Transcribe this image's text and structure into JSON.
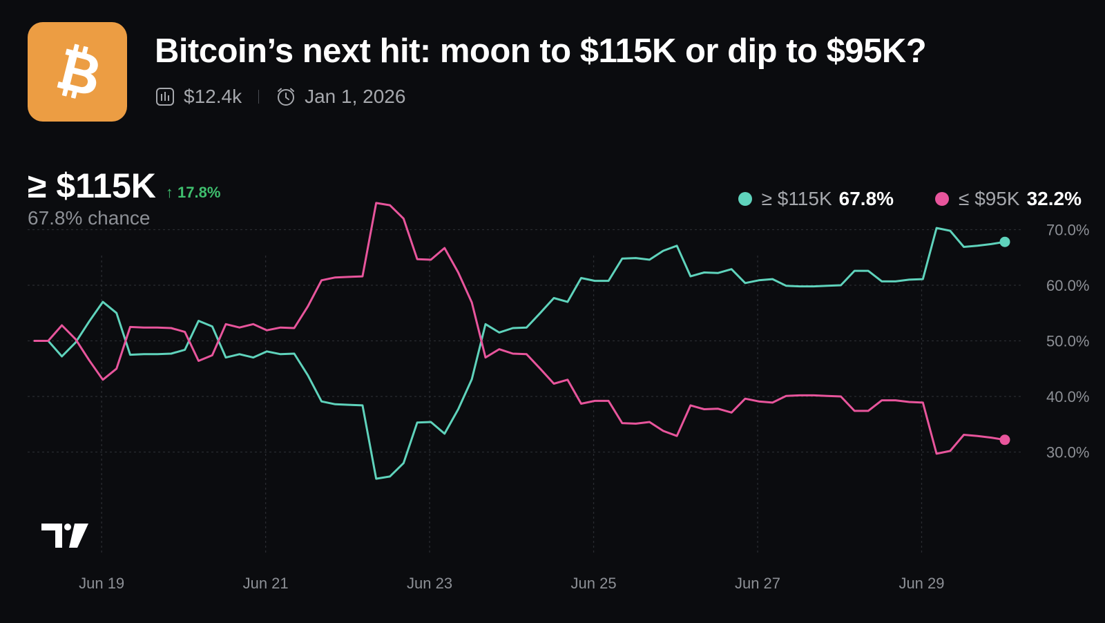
{
  "header": {
    "title": "Bitcoin’s next hit: moon to $115K or dip to $95K?",
    "volume": "$12.4k",
    "end_date": "Jan 1, 2026",
    "logo_bg": "#ec9d43"
  },
  "headline": {
    "label": "≥ $115K",
    "change": "↑ 17.8%",
    "chance": "67.8% chance"
  },
  "legend": [
    {
      "label": "≥ $115K",
      "value": "67.8%",
      "color": "#5fd3bc"
    },
    {
      "label": "≤ $95K",
      "value": "32.2%",
      "color": "#e8559c"
    }
  ],
  "chart_data": {
    "type": "line",
    "x": [
      0,
      0.5,
      1,
      1.5,
      2,
      2.5,
      3,
      3.5,
      4,
      4.5,
      5,
      5.5,
      6,
      6.5,
      7,
      7.5,
      8,
      8.5,
      9,
      9.5,
      10,
      10.5,
      11,
      11.5,
      12,
      12.5,
      13,
      13.5,
      14,
      14.5,
      15,
      15.5,
      16,
      16.5,
      17,
      17.5,
      18,
      18.5,
      19,
      19.5,
      20,
      20.5,
      21,
      21.5,
      22,
      22.5,
      23,
      23.5,
      24,
      24.5,
      25,
      25.5,
      26,
      26.5,
      27,
      27.5,
      28,
      28.5,
      29,
      29.5,
      30,
      30.5,
      31,
      31.5,
      32,
      32.5,
      33,
      33.5,
      34,
      34.5,
      35,
      35.5
    ],
    "x_tick_positions": [
      2,
      8,
      14,
      20,
      26,
      32
    ],
    "x_tick_labels": [
      "Jun 19",
      "Jun 21",
      "Jun 23",
      "Jun 25",
      "Jun 27",
      "Jun 29"
    ],
    "series": [
      {
        "name": "≥ $115K",
        "color": "#5fd3bc",
        "values": [
          50,
          50,
          47.2,
          49.7,
          53.5,
          57,
          55,
          47.5,
          47.6,
          47.6,
          47.7,
          48.4,
          53.6,
          52.6,
          47,
          47.6,
          47,
          48.1,
          47.6,
          47.7,
          43.8,
          39.1,
          38.6,
          38.5,
          38.4,
          25.2,
          25.6,
          28,
          35.3,
          35.4,
          33.3,
          37.7,
          43.1,
          53,
          51.5,
          52.3,
          52.4,
          55,
          57.7,
          57,
          61.3,
          60.8,
          60.8,
          64.8,
          64.9,
          64.6,
          66.2,
          67.1,
          61.6,
          62.3,
          62.2,
          62.9,
          60.4,
          60.9,
          61.1,
          59.9,
          59.8,
          59.8,
          59.9,
          60,
          62.6,
          62.6,
          60.7,
          60.7,
          61,
          61.1,
          70.3,
          69.8,
          66.9,
          67.1,
          67.4,
          67.8
        ]
      },
      {
        "name": "≤ $95K",
        "color": "#e8559c",
        "values": [
          50,
          50,
          52.8,
          50.3,
          46.5,
          43,
          45,
          52.5,
          52.4,
          52.4,
          52.3,
          51.6,
          46.4,
          47.4,
          53,
          52.4,
          53,
          51.9,
          52.4,
          52.3,
          56.2,
          60.9,
          61.4,
          61.5,
          61.6,
          74.8,
          74.4,
          72,
          64.7,
          64.6,
          66.7,
          62.3,
          56.9,
          47,
          48.5,
          47.7,
          47.6,
          45,
          42.3,
          43,
          38.7,
          39.2,
          39.2,
          35.2,
          35.1,
          35.4,
          33.8,
          32.9,
          38.4,
          37.7,
          37.8,
          37.1,
          39.6,
          39.1,
          38.9,
          40.1,
          40.2,
          40.2,
          40.1,
          40,
          37.4,
          37.4,
          39.3,
          39.3,
          39,
          38.9,
          29.7,
          30.2,
          33.1,
          32.9,
          32.6,
          32.2
        ]
      }
    ],
    "y_ticks": [
      30,
      40,
      50,
      60,
      70
    ],
    "y_tick_labels": [
      "30.0%",
      "40.0%",
      "50.0%",
      "60.0%",
      "70.0%"
    ],
    "ylim": [
      22.3,
      79.3
    ],
    "grid": true,
    "title": "",
    "xlabel": "",
    "ylabel": ""
  }
}
